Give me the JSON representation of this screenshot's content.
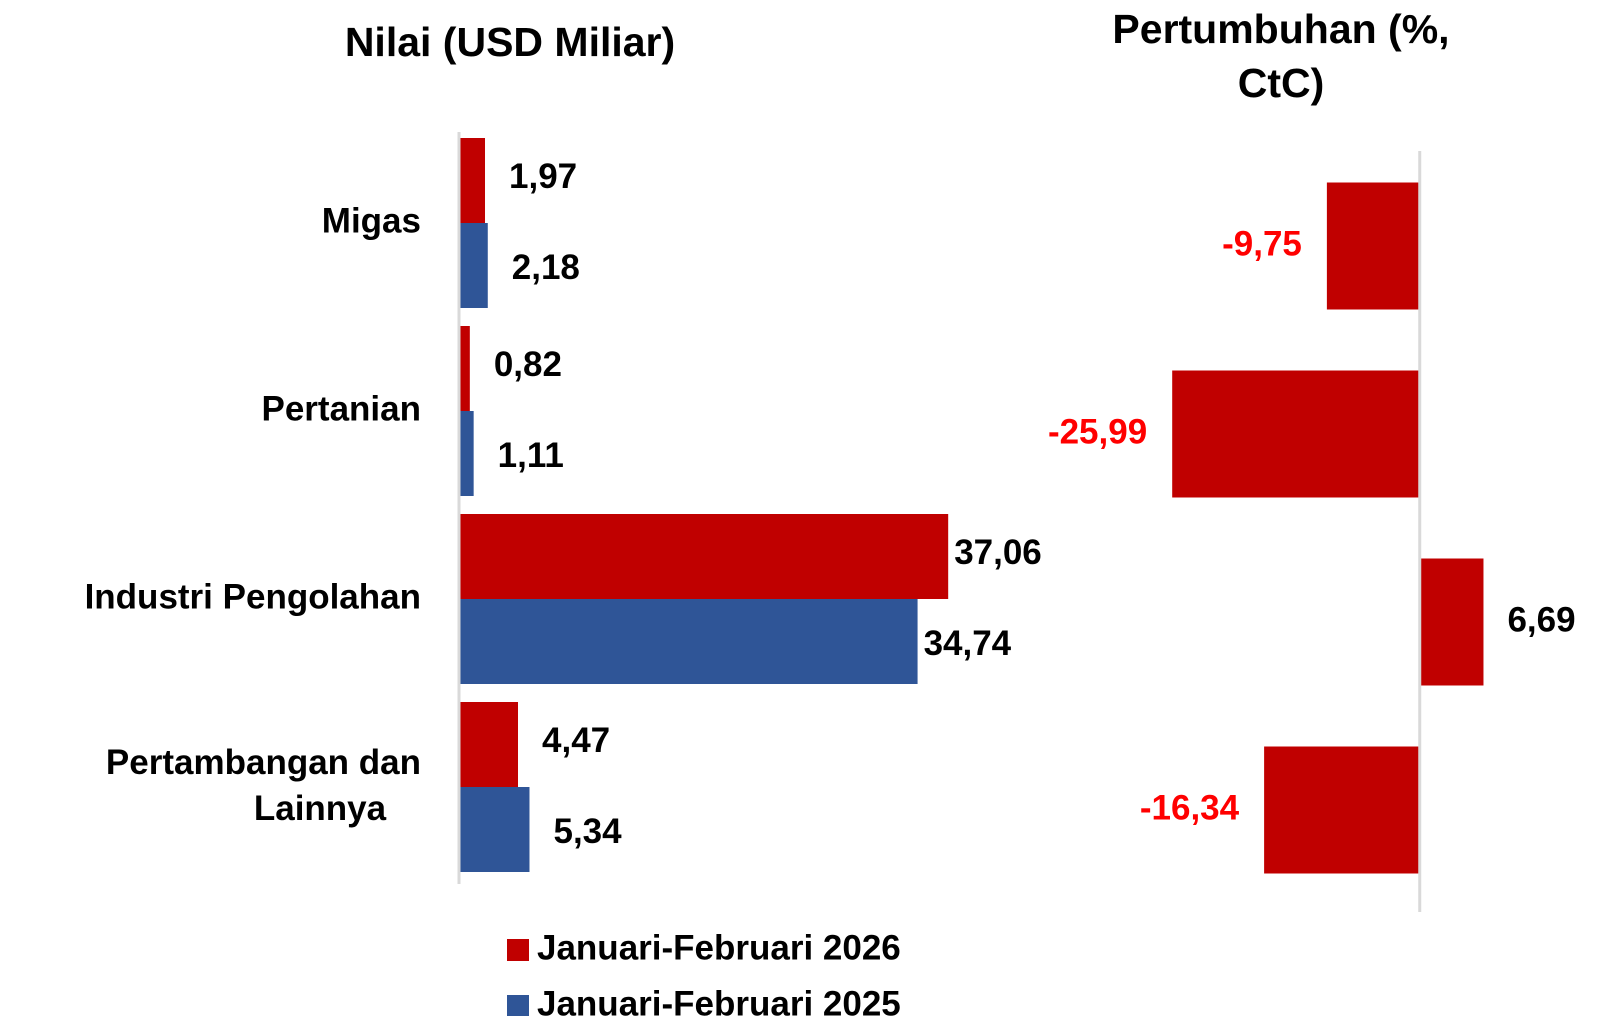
{
  "chart_data": [
    {
      "type": "bar",
      "orientation": "horizontal",
      "title": "Nilai (USD Miliar)",
      "categories": [
        "Migas",
        "Pertanian",
        "Industri Pengolahan",
        "Pertambangan dan Lainnya"
      ],
      "series": [
        {
          "name": "Januari-Februari 2026",
          "color": "#c00000",
          "values": [
            1.97,
            0.82,
            37.06,
            4.47
          ],
          "value_labels": [
            "1,97",
            "0,82",
            "37,06",
            "4,47"
          ]
        },
        {
          "name": "Januari-Februari 2025",
          "color": "#2f5597",
          "values": [
            2.18,
            1.11,
            34.74,
            5.34
          ],
          "value_labels": [
            "2,18",
            "1,11",
            "34,74",
            "5,34"
          ]
        }
      ],
      "xlim": [
        0,
        40
      ],
      "legend": "bottom"
    },
    {
      "type": "bar",
      "orientation": "horizontal",
      "title": "Pertumbuhan (%,  CtC)",
      "values": [
        -9.75,
        -25.99,
        6.69,
        -16.34
      ],
      "value_labels": [
        "-9,75",
        "-25,99",
        "6,69",
        "-16,34"
      ],
      "color": "#c00000",
      "negative_label_color": "#ff0000",
      "label_color": "#000000",
      "xlim": [
        -30,
        10
      ]
    }
  ]
}
